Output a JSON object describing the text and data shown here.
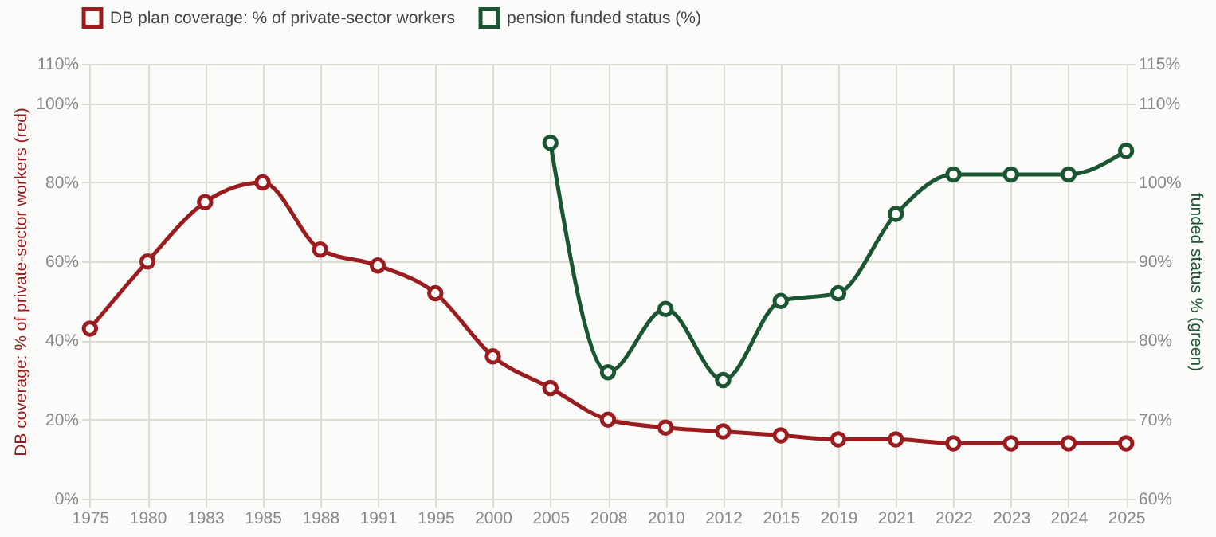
{
  "chart_data": {
    "type": "line",
    "categories": [
      "1975",
      "1980",
      "1983",
      "1985",
      "1988",
      "1991",
      "1995",
      "2000",
      "2005",
      "2008",
      "2010",
      "2012",
      "2015",
      "2019",
      "2021",
      "2022",
      "2023",
      "2024",
      "2025"
    ],
    "series": [
      {
        "name": "DB plan coverage: % of private-sector workers",
        "color": "#9b1c1f",
        "values": [
          43,
          60,
          75,
          80,
          63,
          59,
          52,
          36,
          28,
          20,
          18,
          17,
          16,
          15,
          15,
          14,
          14,
          14,
          14
        ]
      },
      {
        "name": "pension funded status (%)",
        "color": "#1a5632",
        "axis": "y2",
        "values": [
          null,
          null,
          null,
          null,
          null,
          null,
          null,
          null,
          105,
          76,
          84,
          75,
          85,
          86,
          96,
          101,
          101,
          101,
          104
        ]
      }
    ],
    "ylabel": "DB coverage: % of private-sector workers (red)",
    "y2label": "funded status % (green)",
    "ylim": [
      0,
      110
    ],
    "yticks": [
      {
        "value": 0,
        "label": "0%"
      },
      {
        "value": 20,
        "label": "20%"
      },
      {
        "value": 40,
        "label": "40%"
      },
      {
        "value": 60,
        "label": "60%"
      },
      {
        "value": 80,
        "label": "80%"
      },
      {
        "value": 100,
        "label": "100%"
      },
      {
        "value": 110,
        "label": "110%"
      }
    ],
    "y2lim": [
      60,
      115
    ],
    "y2ticks": [
      {
        "value": 60,
        "label": "60%"
      },
      {
        "value": 70,
        "label": "70%"
      },
      {
        "value": 80,
        "label": "80%"
      },
      {
        "value": 90,
        "label": "90%"
      },
      {
        "value": 100,
        "label": "100%"
      },
      {
        "value": 110,
        "label": "110%"
      },
      {
        "value": 115,
        "label": "115%"
      }
    ],
    "grid": true,
    "legend": "top",
    "marker": "circle",
    "line_style": "solid"
  }
}
